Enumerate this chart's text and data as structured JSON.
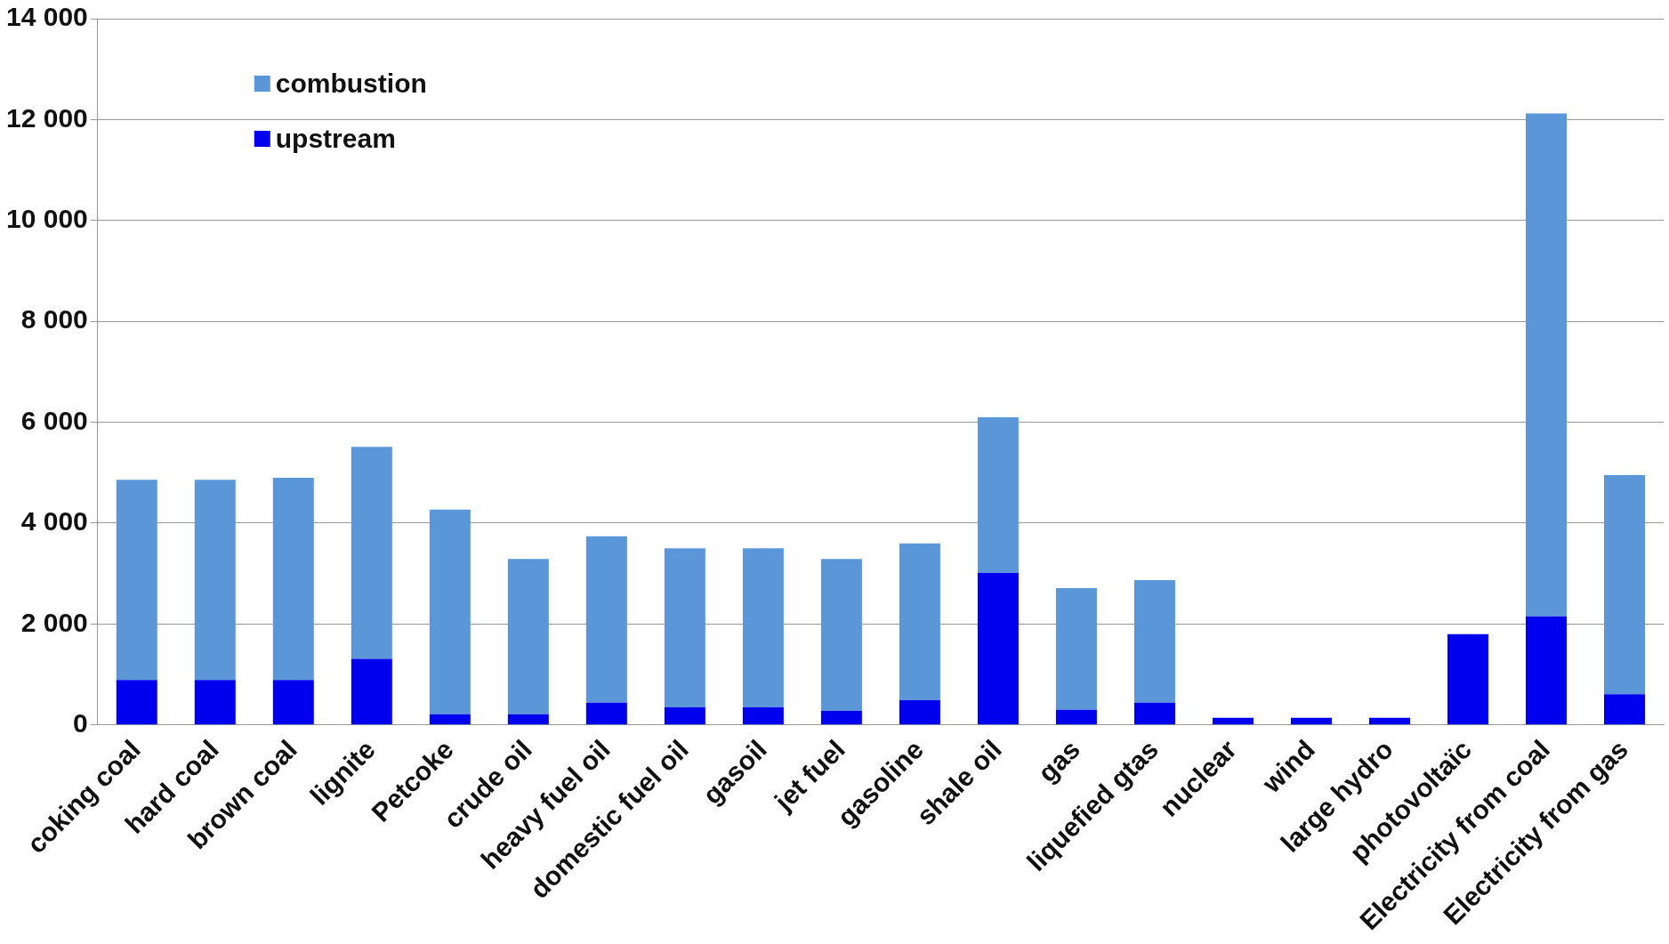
{
  "chart_data": {
    "type": "bar",
    "stacked": true,
    "categories": [
      "coking coal",
      "hard coal",
      "brown coal",
      "lignite",
      "Petcoke",
      "crude oil",
      "heavy fuel oil",
      "domestic fuel oil",
      "gasoil",
      "jet fuel",
      "gasoline",
      "shale oil",
      "gas",
      "liquefied gtas",
      "nuclear",
      "wind",
      "large hydro",
      "photovoltaïc",
      "Electricity from coal",
      "Electricity from gas"
    ],
    "series": [
      {
        "name": "upstream",
        "color": "#0000ee",
        "values": [
          890,
          890,
          890,
          1310,
          210,
          210,
          440,
          350,
          350,
          280,
          490,
          3010,
          300,
          440,
          140,
          140,
          140,
          1800,
          2150,
          610
        ]
      },
      {
        "name": "combustion",
        "color": "#5b96d8",
        "values": [
          3970,
          3970,
          4010,
          4200,
          4060,
          3080,
          3300,
          3150,
          3150,
          3010,
          3110,
          3090,
          2410,
          2430,
          0,
          0,
          0,
          0,
          9970,
          4340
        ]
      }
    ],
    "ylim": [
      0,
      14000
    ],
    "yticks": [
      {
        "value": 0,
        "label": "0"
      },
      {
        "value": 2000,
        "label": "2 000"
      },
      {
        "value": 4000,
        "label": "4 000"
      },
      {
        "value": 6000,
        "label": "6 000"
      },
      {
        "value": 8000,
        "label": "8 000"
      },
      {
        "value": 10000,
        "label": "10 000"
      },
      {
        "value": 12000,
        "label": "12 000"
      },
      {
        "value": 14000,
        "label": "14 000"
      }
    ],
    "grid": "y",
    "legend": "top left"
  }
}
